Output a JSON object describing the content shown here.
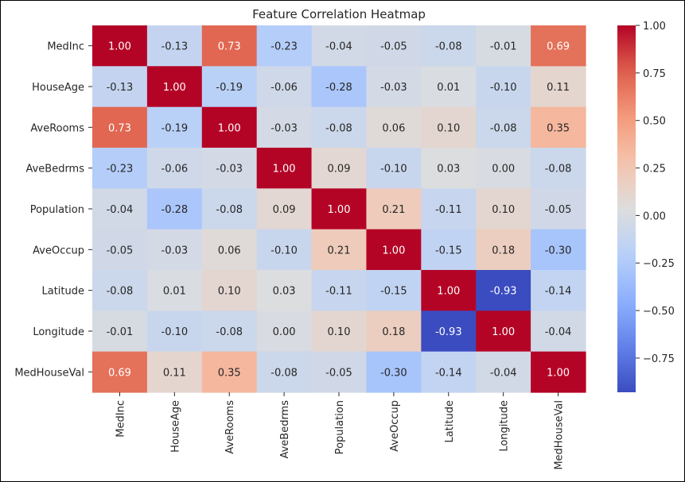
{
  "chart_data": {
    "type": "heatmap",
    "title": "Feature Correlation Heatmap",
    "xlabel": "",
    "ylabel": "",
    "colormap": "coolwarm",
    "vmin": -0.93,
    "vmax": 1.0,
    "annotation_format": "0.00",
    "rows": [
      "MedInc",
      "HouseAge",
      "AveRooms",
      "AveBedrms",
      "Population",
      "AveOccup",
      "Latitude",
      "Longitude",
      "MedHouseVal"
    ],
    "columns": [
      "MedInc",
      "HouseAge",
      "AveRooms",
      "AveBedrms",
      "Population",
      "AveOccup",
      "Latitude",
      "Longitude",
      "MedHouseVal"
    ],
    "values": [
      [
        1.0,
        -0.13,
        0.73,
        -0.23,
        -0.04,
        -0.05,
        -0.08,
        -0.01,
        0.69
      ],
      [
        -0.13,
        1.0,
        -0.19,
        -0.06,
        -0.28,
        -0.03,
        0.01,
        -0.1,
        0.11
      ],
      [
        0.73,
        -0.19,
        1.0,
        -0.03,
        -0.08,
        0.06,
        0.1,
        -0.08,
        0.35
      ],
      [
        -0.23,
        -0.06,
        -0.03,
        1.0,
        0.09,
        -0.1,
        0.03,
        0.0,
        -0.08
      ],
      [
        -0.04,
        -0.28,
        -0.08,
        0.09,
        1.0,
        0.21,
        -0.11,
        0.1,
        -0.05
      ],
      [
        -0.05,
        -0.03,
        0.06,
        -0.1,
        0.21,
        1.0,
        -0.15,
        0.18,
        -0.3
      ],
      [
        -0.08,
        0.01,
        0.1,
        0.03,
        -0.11,
        -0.15,
        1.0,
        -0.93,
        -0.14
      ],
      [
        -0.01,
        -0.1,
        -0.08,
        0.0,
        0.1,
        0.18,
        -0.93,
        1.0,
        -0.04
      ],
      [
        0.69,
        0.11,
        0.35,
        -0.08,
        -0.05,
        -0.3,
        -0.14,
        -0.04,
        1.0
      ]
    ],
    "colorbar": {
      "ticks": [
        1.0,
        0.75,
        0.5,
        0.25,
        0.0,
        -0.25,
        -0.5,
        -0.75
      ],
      "tick_labels": [
        "1.00",
        "0.75",
        "0.50",
        "0.25",
        "0.00",
        "−0.25",
        "−0.50",
        "−0.75"
      ]
    }
  }
}
